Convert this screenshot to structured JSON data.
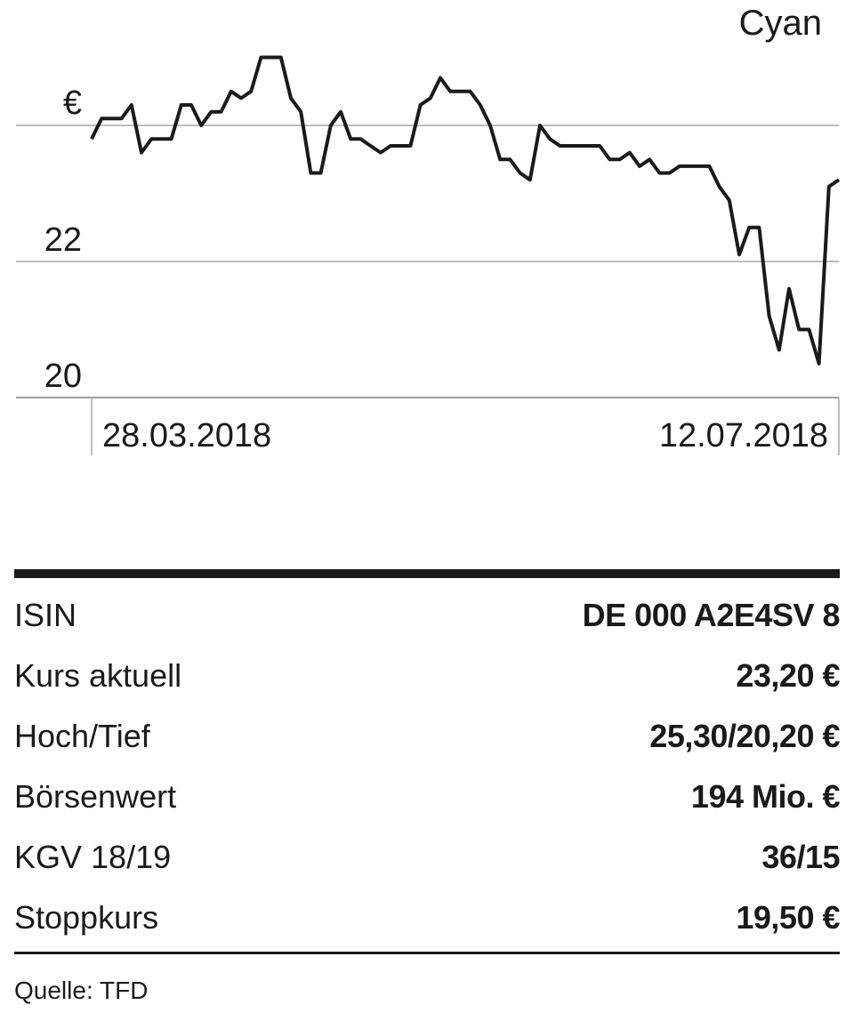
{
  "chart_data": {
    "type": "line",
    "title": "Cyan",
    "ylabel": "€",
    "yticks": [
      20,
      22,
      24
    ],
    "ytick_labels": [
      "20",
      "22",
      ""
    ],
    "ylim": [
      20,
      25.3
    ],
    "x_labels": [
      "28.03.2018",
      "12.07.2018"
    ],
    "grid": true,
    "series": [
      {
        "values": [
          23.8,
          24.1,
          24.1,
          24.1,
          24.3,
          23.6,
          23.8,
          23.8,
          23.8,
          24.3,
          24.3,
          24.0,
          24.2,
          24.2,
          24.5,
          24.4,
          24.5,
          25.0,
          25.0,
          25.0,
          24.4,
          24.2,
          23.3,
          23.3,
          24.0,
          24.2,
          23.8,
          23.8,
          23.7,
          23.6,
          23.7,
          23.7,
          23.7,
          24.3,
          24.4,
          24.7,
          24.5,
          24.5,
          24.5,
          24.3,
          24.0,
          23.5,
          23.5,
          23.3,
          23.2,
          24.0,
          23.8,
          23.7,
          23.7,
          23.7,
          23.7,
          23.7,
          23.5,
          23.5,
          23.6,
          23.4,
          23.5,
          23.3,
          23.3,
          23.4,
          23.4,
          23.4,
          23.4,
          23.1,
          22.9,
          22.1,
          22.5,
          22.5,
          21.2,
          20.7,
          21.6,
          21.0,
          21.0,
          20.5,
          23.1,
          23.2
        ]
      }
    ]
  },
  "table": {
    "rows": [
      {
        "label": "ISIN",
        "value": "DE 000 A2E4SV 8"
      },
      {
        "label": "Kurs aktuell",
        "value": "23,20 €"
      },
      {
        "label": "Hoch/Tief",
        "value": "25,30/20,20 €"
      },
      {
        "label": "Börsenwert",
        "value": "194 Mio. €"
      },
      {
        "label": "KGV 18/19",
        "value": "36/15"
      },
      {
        "label": "Stoppkurs",
        "value": "19,50 €"
      }
    ]
  },
  "source": "Quelle: TFD"
}
